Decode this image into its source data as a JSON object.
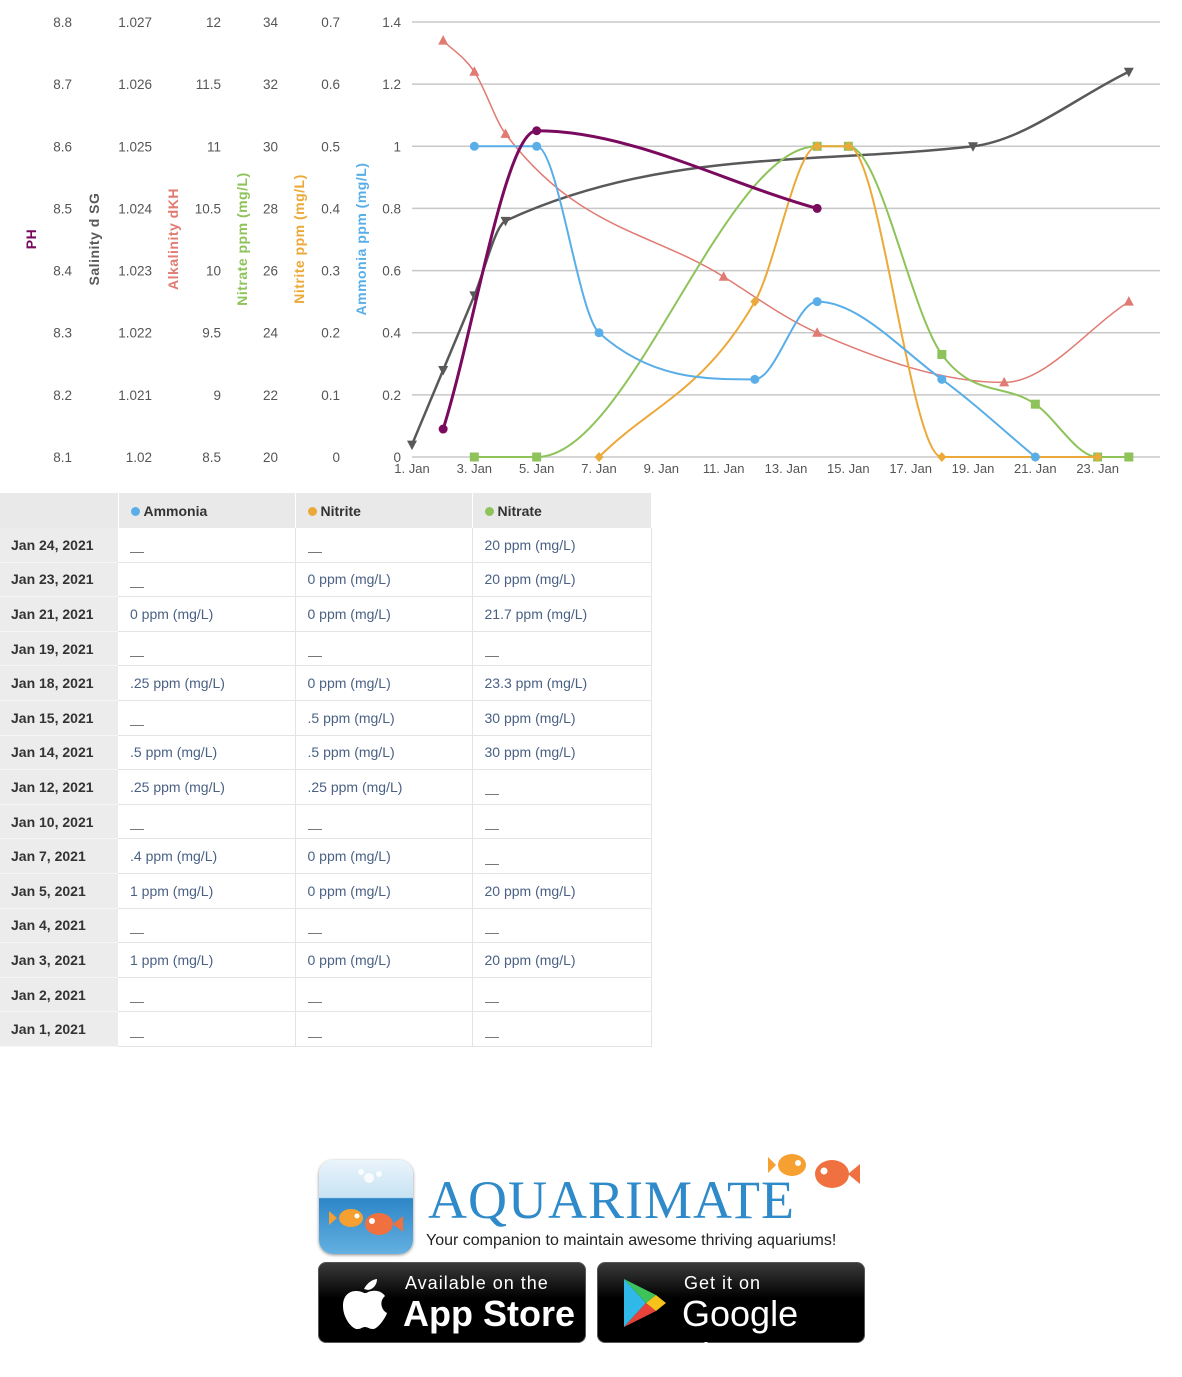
{
  "colors": {
    "ph": "#7a0a5e",
    "salinity": "#595959",
    "alkalinity": "#e07a72",
    "nitrate": "#8ec35a",
    "nitrite": "#eba93a",
    "ammonia": "#5aaee8",
    "grid": "#c8c8c8",
    "brand_blue": "#2f8ac9"
  },
  "chart_data": {
    "type": "line",
    "title": "",
    "x_axis": {
      "unit": "day of January 2021",
      "range": [
        1,
        25
      ],
      "ticks": [
        1,
        3,
        5,
        7,
        9,
        11,
        13,
        15,
        17,
        19,
        21,
        23
      ],
      "tick_labels": [
        "1. Jan",
        "3. Jan",
        "5. Jan",
        "7. Jan",
        "9. Jan",
        "11. Jan",
        "13. Jan",
        "15. Jan",
        "17. Jan",
        "19. Jan",
        "21. Jan",
        "23. Jan"
      ]
    },
    "y_axes": [
      {
        "id": "ph",
        "label": "PH",
        "range": [
          8.1,
          8.8
        ],
        "tick_labels": [
          "8.1",
          "8.2",
          "8.3",
          "8.4",
          "8.5",
          "8.6",
          "8.7",
          "8.8"
        ]
      },
      {
        "id": "salinity",
        "label": "Salinity d SG",
        "range": [
          1.02,
          1.027
        ],
        "tick_labels": [
          "1.02",
          "1.021",
          "1.022",
          "1.023",
          "1.024",
          "1.025",
          "1.026",
          "1.027"
        ]
      },
      {
        "id": "alkalinity",
        "label": "Alkalinity dKH",
        "range": [
          8.5,
          12
        ],
        "tick_labels": [
          "8.5",
          "9",
          "9.5",
          "10",
          "10.5",
          "11",
          "11.5",
          "12"
        ]
      },
      {
        "id": "nitrate",
        "label": "Nitrate ppm (mg/L)",
        "range": [
          20,
          34
        ],
        "tick_labels": [
          "20",
          "22",
          "24",
          "26",
          "28",
          "30",
          "32",
          "34"
        ]
      },
      {
        "id": "nitrite",
        "label": "Nitrite ppm (mg/L)",
        "range": [
          0,
          0.7
        ],
        "tick_labels": [
          "0",
          "0.1",
          "0.2",
          "0.3",
          "0.4",
          "0.5",
          "0.6",
          "0.7"
        ]
      },
      {
        "id": "ammonia",
        "label": "Ammonia ppm (mg/L)",
        "range": [
          0,
          1.4
        ],
        "tick_labels": [
          "0",
          "0.2",
          "0.4",
          "0.6",
          "0.8",
          "1",
          "1.2",
          "1.4"
        ]
      }
    ],
    "grid": true,
    "legend": "none",
    "series": [
      {
        "axis": "ph",
        "marker": "circle",
        "x": [
          2,
          5,
          14
        ],
        "y": [
          8.145,
          8.625,
          8.5
        ]
      },
      {
        "axis": "salinity",
        "marker": "triangle-down",
        "x": [
          1,
          2,
          3,
          4,
          19,
          24
        ],
        "y": [
          1.0202,
          1.0214,
          1.0226,
          1.0238,
          1.025,
          1.0262
        ]
      },
      {
        "axis": "alkalinity",
        "marker": "triangle",
        "x": [
          2,
          3,
          4,
          11,
          14,
          20,
          24
        ],
        "y": [
          11.85,
          11.6,
          11.1,
          9.95,
          9.5,
          9.1,
          9.75
        ]
      },
      {
        "axis": "nitrate",
        "marker": "square",
        "x": [
          3,
          5,
          14,
          15,
          18,
          21,
          23,
          24
        ],
        "y": [
          20,
          20,
          30,
          30,
          23.3,
          21.7,
          20,
          20
        ]
      },
      {
        "axis": "nitrite",
        "marker": "diamond",
        "x": [
          7,
          12,
          14,
          15,
          18,
          21,
          23
        ],
        "y": [
          0,
          0.25,
          0.5,
          0.5,
          0,
          0,
          0
        ]
      },
      {
        "axis": "ammonia",
        "marker": "circle",
        "x": [
          3,
          5,
          7,
          12,
          14,
          18,
          21
        ],
        "y": [
          1,
          1,
          0.4,
          0.25,
          0.5,
          0.25,
          0
        ]
      }
    ]
  },
  "table": {
    "headers": [
      "",
      "Ammonia",
      "Nitrite",
      "Nitrate"
    ],
    "rows": [
      {
        "date": "Jan 24, 2021",
        "ammonia": "",
        "nitrite": "",
        "nitrate": "20 ppm (mg/L)"
      },
      {
        "date": "Jan 23, 2021",
        "ammonia": "",
        "nitrite": "0 ppm (mg/L)",
        "nitrate": "20 ppm (mg/L)"
      },
      {
        "date": "Jan 21, 2021",
        "ammonia": "0 ppm (mg/L)",
        "nitrite": "0 ppm (mg/L)",
        "nitrate": "21.7 ppm (mg/L)"
      },
      {
        "date": "Jan 19, 2021",
        "ammonia": "",
        "nitrite": "",
        "nitrate": ""
      },
      {
        "date": "Jan 18, 2021",
        "ammonia": ".25 ppm (mg/L)",
        "nitrite": "0 ppm (mg/L)",
        "nitrate": "23.3 ppm (mg/L)"
      },
      {
        "date": "Jan 15, 2021",
        "ammonia": "",
        "nitrite": ".5 ppm (mg/L)",
        "nitrate": "30 ppm (mg/L)"
      },
      {
        "date": "Jan 14, 2021",
        "ammonia": ".5 ppm (mg/L)",
        "nitrite": ".5 ppm (mg/L)",
        "nitrate": "30 ppm (mg/L)"
      },
      {
        "date": "Jan 12, 2021",
        "ammonia": ".25 ppm (mg/L)",
        "nitrite": ".25 ppm (mg/L)",
        "nitrate": ""
      },
      {
        "date": "Jan 10, 2021",
        "ammonia": "",
        "nitrite": "",
        "nitrate": ""
      },
      {
        "date": "Jan 7, 2021",
        "ammonia": ".4 ppm (mg/L)",
        "nitrite": "0 ppm (mg/L)",
        "nitrate": ""
      },
      {
        "date": "Jan 5, 2021",
        "ammonia": "1 ppm (mg/L)",
        "nitrite": "0 ppm (mg/L)",
        "nitrate": "20 ppm (mg/L)"
      },
      {
        "date": "Jan 4, 2021",
        "ammonia": "",
        "nitrite": "",
        "nitrate": ""
      },
      {
        "date": "Jan 3, 2021",
        "ammonia": "1 ppm (mg/L)",
        "nitrite": "0 ppm (mg/L)",
        "nitrate": "20 ppm (mg/L)"
      },
      {
        "date": "Jan 2, 2021",
        "ammonia": "",
        "nitrite": "",
        "nitrate": ""
      },
      {
        "date": "Jan 1, 2021",
        "ammonia": "",
        "nitrite": "",
        "nitrate": ""
      }
    ]
  },
  "promo": {
    "brand": "AQUARIMATE",
    "tagline": "Your companion to maintain awesome thriving aquariums!",
    "app_store": {
      "small": "Available on the",
      "big": "App Store",
      "icon": "apple-icon"
    },
    "google_play": {
      "small": "Get it on",
      "big": "Google play",
      "icon": "play-triangle-icon"
    }
  }
}
